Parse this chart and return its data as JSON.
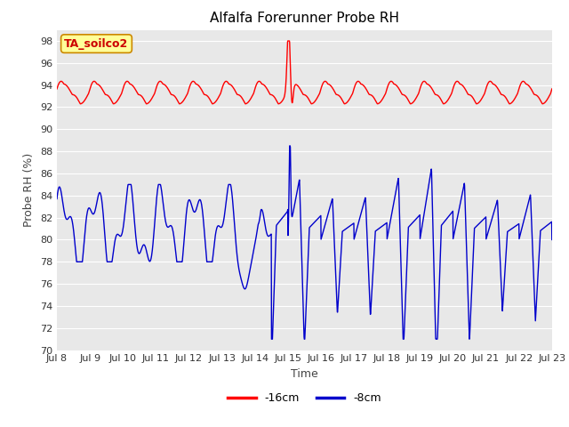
{
  "title": "Alfalfa Forerunner Probe RH",
  "xlabel": "Time",
  "ylabel": "Probe RH (%)",
  "ylim": [
    70,
    99
  ],
  "yticks": [
    70,
    72,
    74,
    76,
    78,
    80,
    82,
    84,
    86,
    88,
    90,
    92,
    94,
    96,
    98
  ],
  "xtick_labels": [
    "Jul 8",
    "Jul 9",
    "Jul 10",
    "Jul 11",
    "Jul 12",
    "Jul 13",
    "Jul 14",
    "Jul 15",
    "Jul 16",
    "Jul 17",
    "Jul 18",
    "Jul 19",
    "Jul 20",
    "Jul 21",
    "Jul 22",
    "Jul 23"
  ],
  "bg_color": "#e8e8e8",
  "red_color": "#ff0000",
  "blue_color": "#0000cc",
  "annotation_text": "TA_soilco2",
  "annotation_bg": "#ffff99",
  "annotation_border": "#cc8800",
  "legend_red_label": "-16cm",
  "legend_blue_label": "-8cm",
  "title_fontsize": 11,
  "axis_label_fontsize": 9,
  "tick_fontsize": 8
}
